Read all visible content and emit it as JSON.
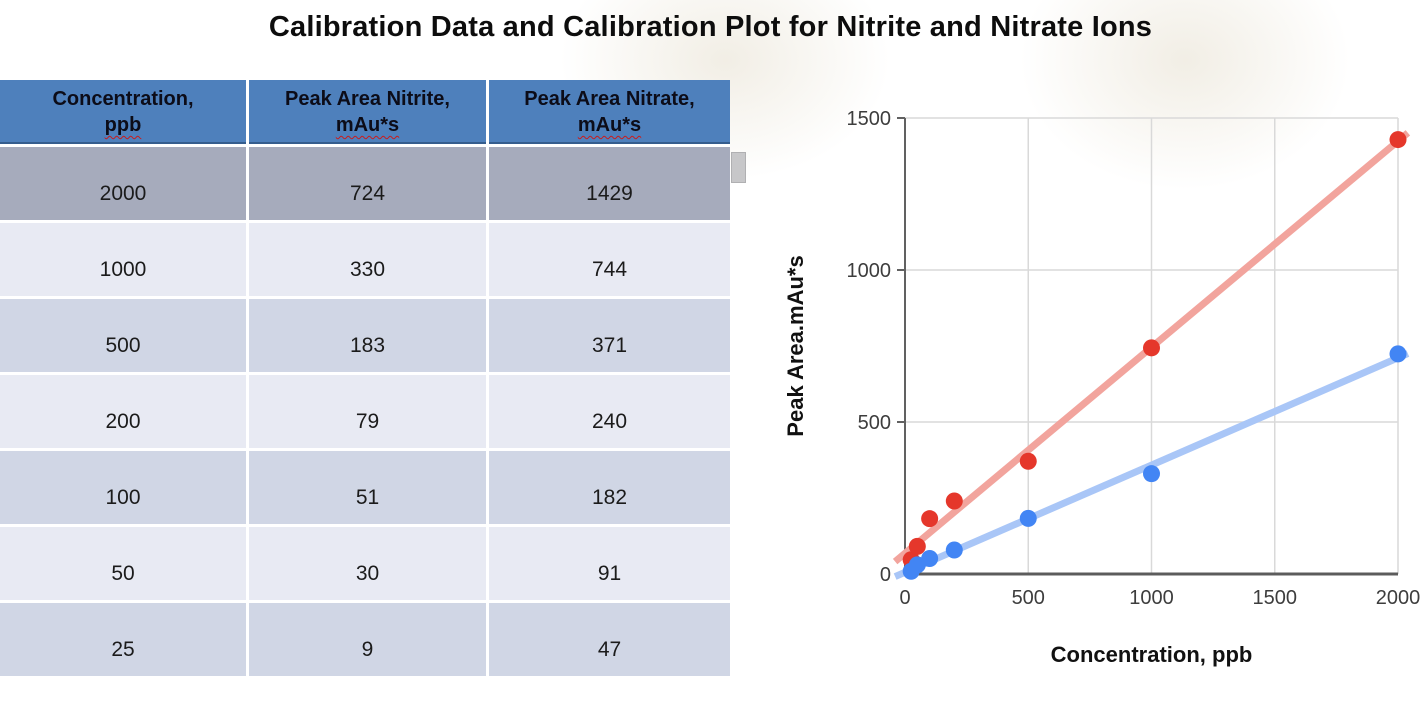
{
  "page": {
    "title": "Calibration Data and Calibration Plot for Nitrite and Nitrate Ions"
  },
  "table": {
    "columns": [
      {
        "label": "Concentration,",
        "unit": "ppb"
      },
      {
        "label": "Peak Area Nitrite,",
        "unit": "mAu*s"
      },
      {
        "label": "Peak Area Nitrate,",
        "unit": "mAu*s"
      }
    ],
    "rows": [
      [
        "2000",
        "724",
        "1429"
      ],
      [
        "1000",
        "330",
        "744"
      ],
      [
        "500",
        "183",
        "371"
      ],
      [
        "200",
        "79",
        "240"
      ],
      [
        "100",
        "51",
        "182"
      ],
      [
        "50",
        "30",
        "91"
      ],
      [
        "25",
        "9",
        "47"
      ]
    ],
    "selected_row_index": 0
  },
  "chart_data": {
    "type": "scatter",
    "x": [
      25,
      50,
      100,
      200,
      500,
      1000,
      2000
    ],
    "series": [
      {
        "name": "Peak Area Nitrite, mAu*s",
        "values": [
          9,
          30,
          51,
          79,
          183,
          330,
          724
        ],
        "dot_color": "#4285f4",
        "trend_color": "#a9c6f7"
      },
      {
        "name": "Peak Area Nitrate, mAu*s",
        "values": [
          47,
          91,
          182,
          240,
          371,
          744,
          1429
        ],
        "dot_color": "#e5372b",
        "trend_color": "#f2a49d"
      }
    ],
    "title": "",
    "xlabel": "Concentration, ppb",
    "ylabel": "Peak Area.mAu*s",
    "xlim": [
      0,
      2000
    ],
    "ylim": [
      0,
      1500
    ],
    "xticks": [
      0,
      500,
      1000,
      1500,
      2000
    ],
    "yticks": [
      0,
      500,
      1000,
      1500
    ],
    "grid": true,
    "trendlines": true,
    "legend_position": "none"
  },
  "colors": {
    "table_header_bg": "#4e80bc",
    "row_selected": "#a6abbc",
    "row_light": "#e8eaf3",
    "row_medium": "#d0d6e5",
    "spellcheck_underline": "#cc1a1a",
    "gridline": "#d9d9d9",
    "axis": "#616161",
    "nitrite_dot": "#4285f4",
    "nitrite_trend": "#a9c6f7",
    "nitrate_dot": "#e5372b",
    "nitrate_trend": "#f2a49d"
  }
}
